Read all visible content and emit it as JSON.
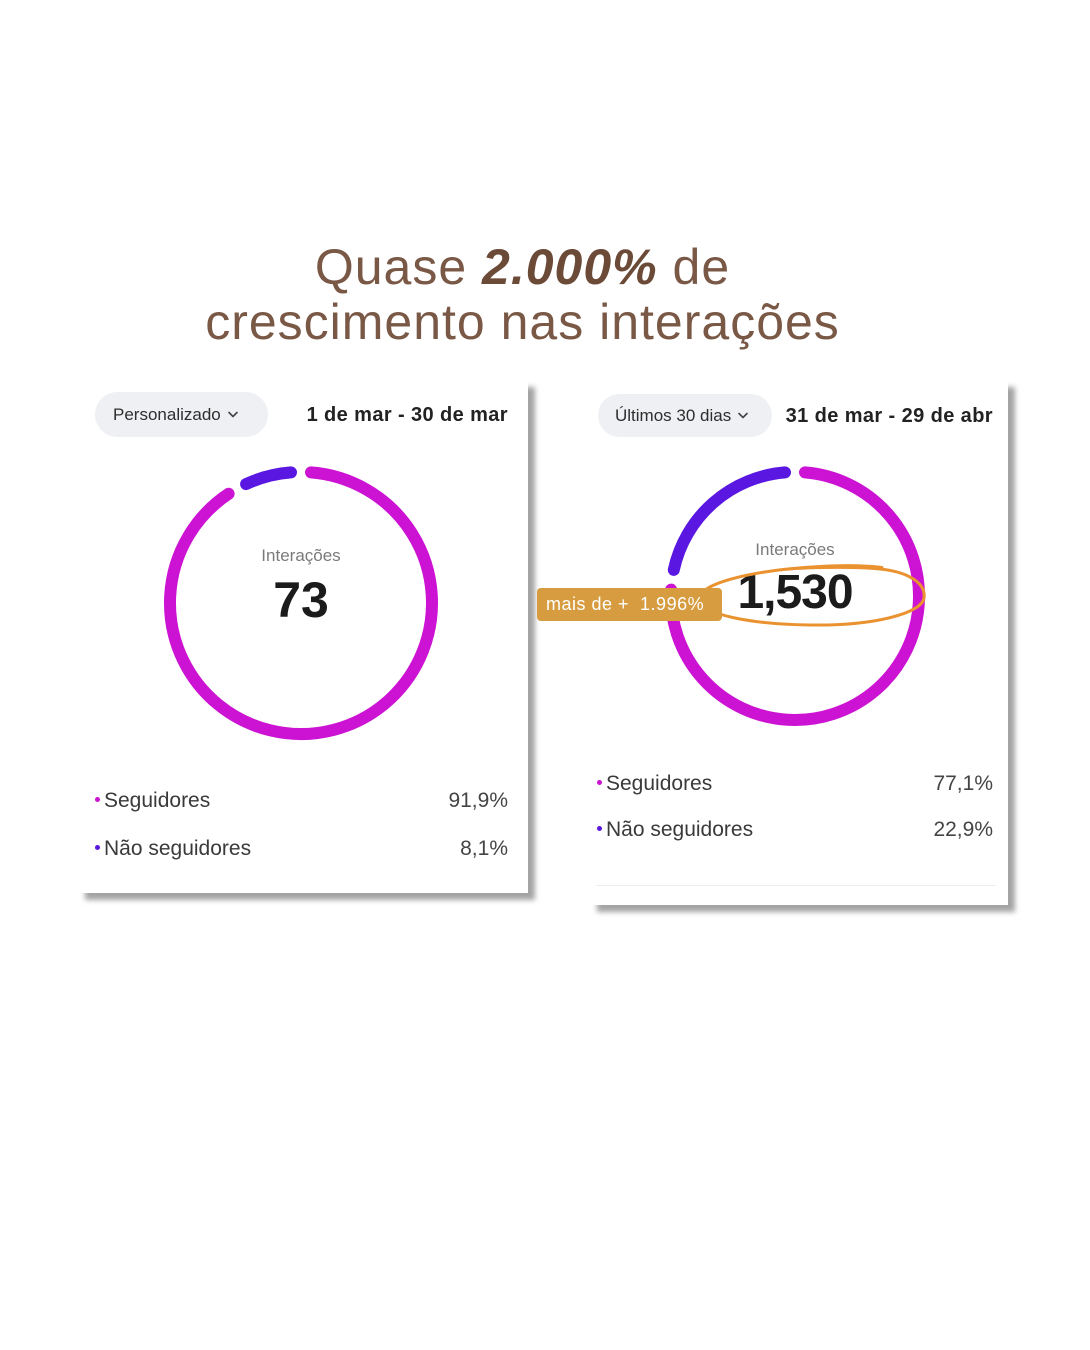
{
  "headline": {
    "line1_start": "Quase",
    "line1_highlight": "2.000%",
    "line1_end": "de",
    "line2": "crescimento nas interações"
  },
  "panels": [
    {
      "period_selector": "Personalizado",
      "selector_icon": "chevron-down-icon",
      "date_range": "1 de mar - 30 de mar"
    },
    {
      "period_selector": "Últimos 30 dias",
      "selector_icon": "chevron-down-icon",
      "date_range": "31 de mar - 29 de abr"
    }
  ],
  "annotation": {
    "badge_text": "mais de +  1.996%"
  },
  "colors": {
    "headline": "#7a5846",
    "headline_highlight": "#6b4a37",
    "seguidores": "#cc12d2",
    "nao_seguidores": "#5b17e2",
    "annotation_badge": "#d69c3f",
    "annotation_outline": "#ea9230",
    "pill_background": "#eef0f3"
  },
  "chart_data": [
    {
      "type": "pie",
      "style": "donut",
      "center_label": "Interações",
      "center_value": "73",
      "categories": [
        "Seguidores",
        "Não seguidores"
      ],
      "values": [
        91.9,
        8.1
      ],
      "value_labels": [
        "91,9%",
        "8,1%"
      ],
      "colors": [
        "#cc12d2",
        "#5b17e2"
      ],
      "legend": "below"
    },
    {
      "type": "pie",
      "style": "donut",
      "center_label": "Interações",
      "center_value": "1,530",
      "categories": [
        "Seguidores",
        "Não seguidores"
      ],
      "values": [
        77.1,
        22.9
      ],
      "value_labels": [
        "77,1%",
        "22,9%"
      ],
      "colors": [
        "#cc12d2",
        "#5b17e2"
      ],
      "legend": "below"
    }
  ]
}
